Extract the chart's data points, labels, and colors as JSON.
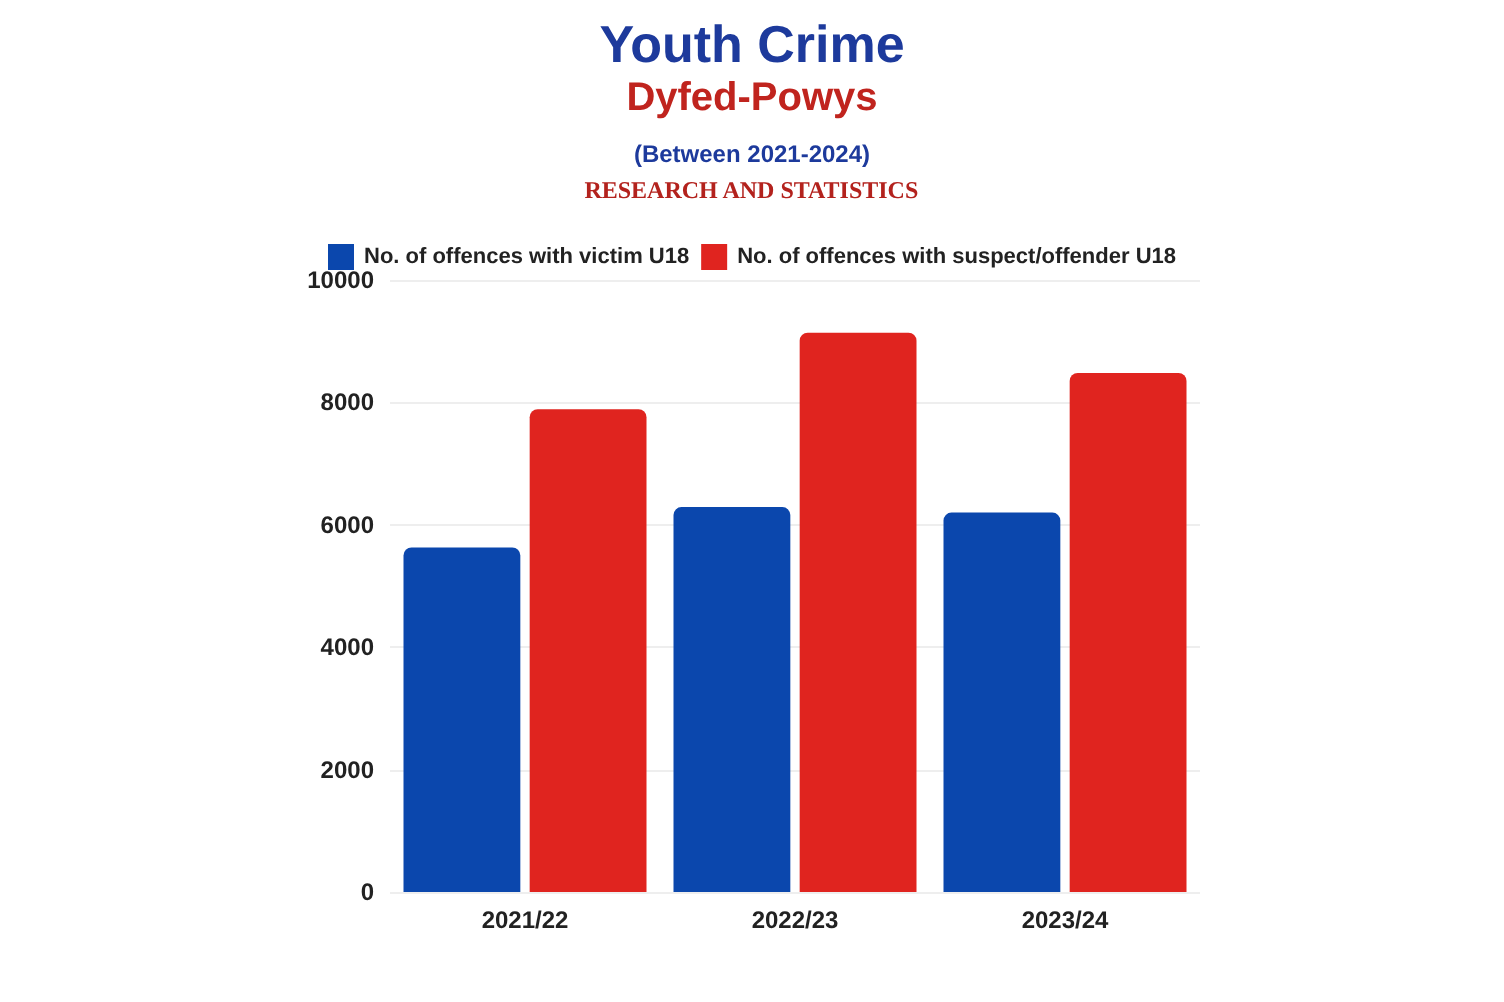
{
  "chart_data": {
    "type": "bar",
    "title": "Youth Crime",
    "subtitle": "Dyfed-Powys",
    "annotations": [
      "(Between 2021-2024)",
      "RESEARCH AND STATISTICS"
    ],
    "categories": [
      "2021/22",
      "2022/23",
      "2023/24"
    ],
    "series": [
      {
        "name": "No. of offences with victim U18",
        "color": "#0b47ad",
        "values": [
          5630,
          6290,
          6200
        ]
      },
      {
        "name": "No. of offences with suspect/offender U18",
        "color": "#e0241f",
        "values": [
          7890,
          9140,
          8480
        ]
      }
    ],
    "ylim": [
      0,
      10000
    ],
    "yticks": [
      0,
      2000,
      4000,
      6000,
      8000,
      10000
    ],
    "grid": "y",
    "legend": "top"
  }
}
